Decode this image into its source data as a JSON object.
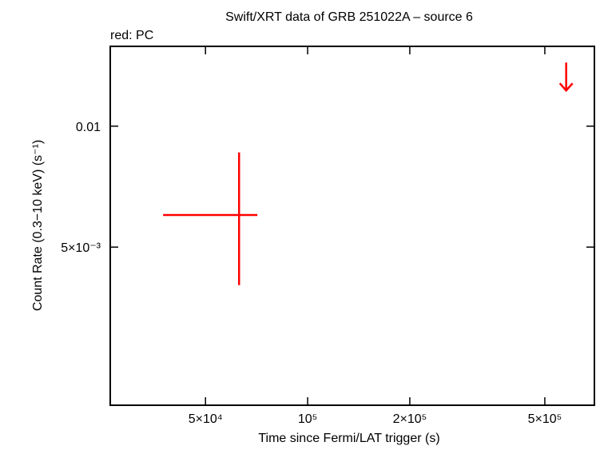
{
  "chart_data": {
    "type": "scatter",
    "title": "Swift/XRT data of GRB 251022A – source 6",
    "annotation": "red: PC",
    "x_label": "Time since Fermi/LAT trigger (s)",
    "y_label": "Count Rate (0.3−10 keV) (s⁻¹)",
    "log_x": true,
    "log_y": true,
    "xlim": [
      26200,
      700000
    ],
    "ylim": [
      0.00202,
      0.0158
    ],
    "xticks": [
      {
        "value": 50000,
        "label": "5×10⁴"
      },
      {
        "value": 100000,
        "label": "10⁵"
      },
      {
        "value": 200000,
        "label": "2×10⁵"
      },
      {
        "value": 500000,
        "label": "5×10⁵"
      }
    ],
    "yticks": [
      {
        "value": 0.01,
        "label": "0.01"
      },
      {
        "value": 0.005,
        "label": "5×10⁻³"
      }
    ],
    "color": "#ff0000",
    "x": [
      62800
    ],
    "x_low": [
      37500
    ],
    "x_high": [
      71100
    ],
    "y": [
      0.00601
    ],
    "y_low": [
      0.00402
    ],
    "y_high": [
      0.0086
    ],
    "upper_limits": {
      "x": [
        578000
      ],
      "y": [
        0.0144
      ]
    }
  }
}
